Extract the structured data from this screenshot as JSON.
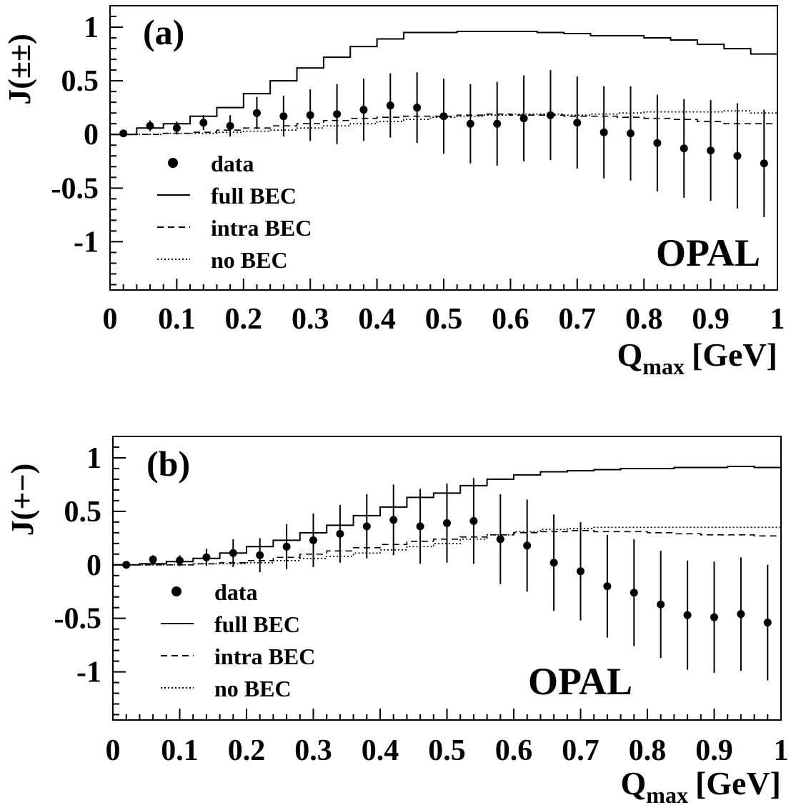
{
  "chart_data": [
    {
      "type": "scatter",
      "panel_label": "(a)",
      "experiment_label": "OPAL",
      "ylabel": "J(±±)",
      "xlabel_main": "Q",
      "xlabel_sub": "max",
      "xlabel_unit": "[GeV]",
      "xlim": [
        0,
        1
      ],
      "ylim": [
        -1.45,
        1.2
      ],
      "xticks": [
        0,
        0.1,
        0.2,
        0.3,
        0.4,
        0.5,
        0.6,
        0.7,
        0.8,
        0.9,
        1
      ],
      "xtick_labels": [
        "0",
        "0.1",
        "0.2",
        "0.3",
        "0.4",
        "0.5",
        "0.6",
        "0.7",
        "0.8",
        "0.9",
        "1"
      ],
      "yticks": [
        1,
        0.5,
        0,
        -0.5,
        -1
      ],
      "ytick_labels": [
        "1",
        "0.5",
        "0",
        "-0.5",
        "-1"
      ],
      "legend": {
        "placement": "bottom-left",
        "entries": [
          "data",
          "full BEC",
          "intra BEC",
          "no BEC"
        ]
      },
      "data": {
        "name": "data",
        "x": [
          0.02,
          0.06,
          0.1,
          0.14,
          0.18,
          0.22,
          0.26,
          0.3,
          0.34,
          0.38,
          0.42,
          0.46,
          0.5,
          0.54,
          0.58,
          0.62,
          0.66,
          0.7,
          0.74,
          0.78,
          0.82,
          0.86,
          0.9,
          0.94,
          0.98
        ],
        "y": [
          0.01,
          0.08,
          0.06,
          0.11,
          0.08,
          0.2,
          0.17,
          0.18,
          0.19,
          0.23,
          0.27,
          0.25,
          0.17,
          0.1,
          0.1,
          0.15,
          0.18,
          0.11,
          0.02,
          0.01,
          -0.08,
          -0.13,
          -0.15,
          -0.2,
          -0.27
        ],
        "err": [
          0.01,
          0.05,
          0.06,
          0.07,
          0.1,
          0.15,
          0.19,
          0.24,
          0.28,
          0.29,
          0.3,
          0.33,
          0.35,
          0.37,
          0.39,
          0.4,
          0.42,
          0.43,
          0.43,
          0.44,
          0.45,
          0.46,
          0.47,
          0.49,
          0.5
        ]
      },
      "histograms": [
        {
          "name": "full BEC",
          "style": "solid",
          "values": [
            0.0,
            0.06,
            0.1,
            0.17,
            0.25,
            0.38,
            0.5,
            0.62,
            0.72,
            0.82,
            0.89,
            0.95,
            0.95,
            0.96,
            0.96,
            0.96,
            0.95,
            0.94,
            0.92,
            0.92,
            0.9,
            0.88,
            0.84,
            0.8,
            0.75
          ]
        },
        {
          "name": "intra BEC",
          "style": "dashed",
          "values": [
            0.0,
            0.0,
            0.01,
            0.02,
            0.04,
            0.06,
            0.08,
            0.1,
            0.13,
            0.15,
            0.16,
            0.17,
            0.17,
            0.18,
            0.19,
            0.18,
            0.18,
            0.17,
            0.17,
            0.16,
            0.15,
            0.14,
            0.12,
            0.1,
            0.1
          ]
        },
        {
          "name": "no BEC",
          "style": "dotted",
          "values": [
            0.0,
            0.0,
            0.01,
            0.01,
            0.02,
            0.03,
            0.04,
            0.06,
            0.08,
            0.1,
            0.12,
            0.14,
            0.16,
            0.17,
            0.18,
            0.19,
            0.19,
            0.18,
            0.19,
            0.2,
            0.21,
            0.21,
            0.21,
            0.22,
            0.2
          ]
        }
      ]
    },
    {
      "type": "scatter",
      "panel_label": "(b)",
      "experiment_label": "OPAL",
      "ylabel": "J(+−)",
      "xlabel_main": "Q",
      "xlabel_sub": "max",
      "xlabel_unit": "[GeV]",
      "xlim": [
        0,
        1
      ],
      "ylim": [
        -1.45,
        1.2
      ],
      "xticks": [
        0,
        0.1,
        0.2,
        0.3,
        0.4,
        0.5,
        0.6,
        0.7,
        0.8,
        0.9,
        1
      ],
      "xtick_labels": [
        "0",
        "0.1",
        "0.2",
        "0.3",
        "0.4",
        "0.5",
        "0.6",
        "0.7",
        "0.8",
        "0.9",
        "1"
      ],
      "yticks": [
        1,
        0.5,
        0,
        -0.5,
        -1
      ],
      "ytick_labels": [
        "1",
        "0.5",
        "0",
        "-0.5",
        "-1"
      ],
      "legend": {
        "placement": "bottom-left",
        "entries": [
          "data",
          "full BEC",
          "intra BEC",
          "no BEC"
        ]
      },
      "data": {
        "name": "data",
        "x": [
          0.02,
          0.06,
          0.1,
          0.14,
          0.18,
          0.22,
          0.26,
          0.3,
          0.34,
          0.38,
          0.42,
          0.46,
          0.5,
          0.54,
          0.58,
          0.62,
          0.66,
          0.7,
          0.74,
          0.78,
          0.82,
          0.86,
          0.9,
          0.94,
          0.98
        ],
        "y": [
          0.0,
          0.05,
          0.04,
          0.07,
          0.11,
          0.09,
          0.17,
          0.23,
          0.29,
          0.36,
          0.42,
          0.36,
          0.39,
          0.41,
          0.24,
          0.18,
          0.02,
          -0.06,
          -0.2,
          -0.26,
          -0.37,
          -0.47,
          -0.49,
          -0.46,
          -0.54
        ],
        "err": [
          0.01,
          0.04,
          0.05,
          0.08,
          0.13,
          0.16,
          0.21,
          0.25,
          0.27,
          0.3,
          0.33,
          0.35,
          0.37,
          0.4,
          0.42,
          0.43,
          0.45,
          0.46,
          0.48,
          0.5,
          0.5,
          0.51,
          0.52,
          0.53,
          0.54
        ]
      },
      "histograms": [
        {
          "name": "full BEC",
          "style": "solid",
          "values": [
            0.0,
            0.01,
            0.03,
            0.06,
            0.11,
            0.17,
            0.23,
            0.3,
            0.37,
            0.46,
            0.54,
            0.63,
            0.67,
            0.74,
            0.8,
            0.84,
            0.87,
            0.88,
            0.89,
            0.9,
            0.9,
            0.91,
            0.91,
            0.92,
            0.91
          ]
        },
        {
          "name": "intra BEC",
          "style": "dashed",
          "values": [
            0.0,
            0.0,
            0.0,
            0.01,
            0.02,
            0.04,
            0.07,
            0.1,
            0.13,
            0.16,
            0.19,
            0.22,
            0.24,
            0.26,
            0.28,
            0.3,
            0.31,
            0.32,
            0.31,
            0.31,
            0.3,
            0.29,
            0.28,
            0.28,
            0.27
          ]
        },
        {
          "name": "no BEC",
          "style": "dotted",
          "values": [
            0.0,
            0.0,
            0.0,
            0.01,
            0.01,
            0.02,
            0.04,
            0.06,
            0.08,
            0.11,
            0.14,
            0.17,
            0.2,
            0.24,
            0.28,
            0.31,
            0.33,
            0.34,
            0.35,
            0.35,
            0.35,
            0.35,
            0.35,
            0.35,
            0.35
          ]
        }
      ]
    }
  ]
}
